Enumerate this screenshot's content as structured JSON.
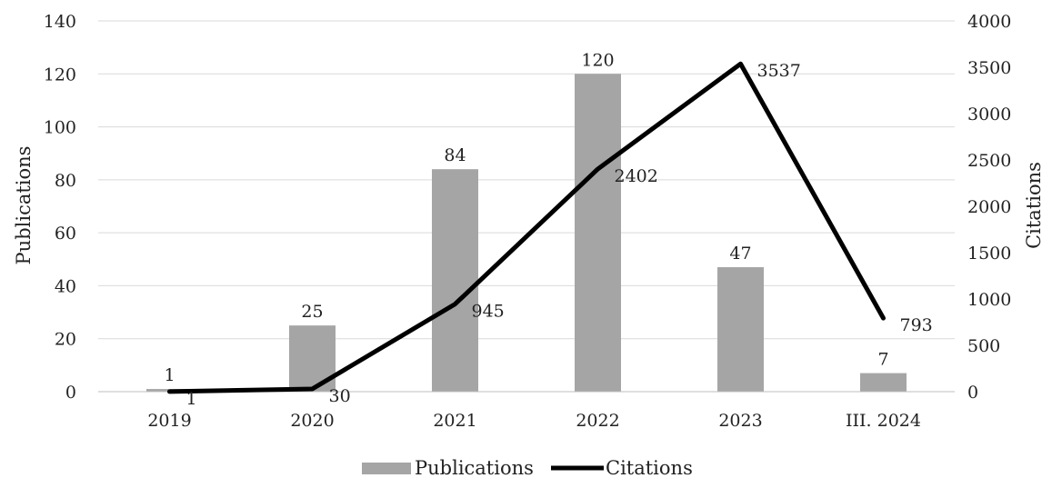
{
  "chart_data": {
    "type": "bar+line",
    "categories": [
      "2019",
      "2020",
      "2021",
      "2022",
      "2023",
      "III. 2024"
    ],
    "series": [
      {
        "name": "Publications",
        "type": "bar",
        "axis": "left",
        "values": [
          1,
          25,
          84,
          120,
          47,
          7
        ],
        "color": "#a5a5a5"
      },
      {
        "name": "Citations",
        "type": "line",
        "axis": "right",
        "values": [
          1,
          30,
          945,
          2402,
          3537,
          793
        ],
        "color": "#000000"
      }
    ],
    "y_left": {
      "label": "Publications",
      "min": 0,
      "max": 140,
      "step": 20,
      "ticks": [
        "0",
        "20",
        "40",
        "60",
        "80",
        "100",
        "120",
        "140"
      ]
    },
    "y_right": {
      "label": "Citations",
      "min": 0,
      "max": 4000,
      "step": 500,
      "ticks": [
        "0",
        "500",
        "1000",
        "1500",
        "2000",
        "2500",
        "3000",
        "3500",
        "4000"
      ]
    },
    "grid": true,
    "legend": {
      "position": "bottom",
      "items": [
        "Publications",
        "Citations"
      ]
    }
  }
}
